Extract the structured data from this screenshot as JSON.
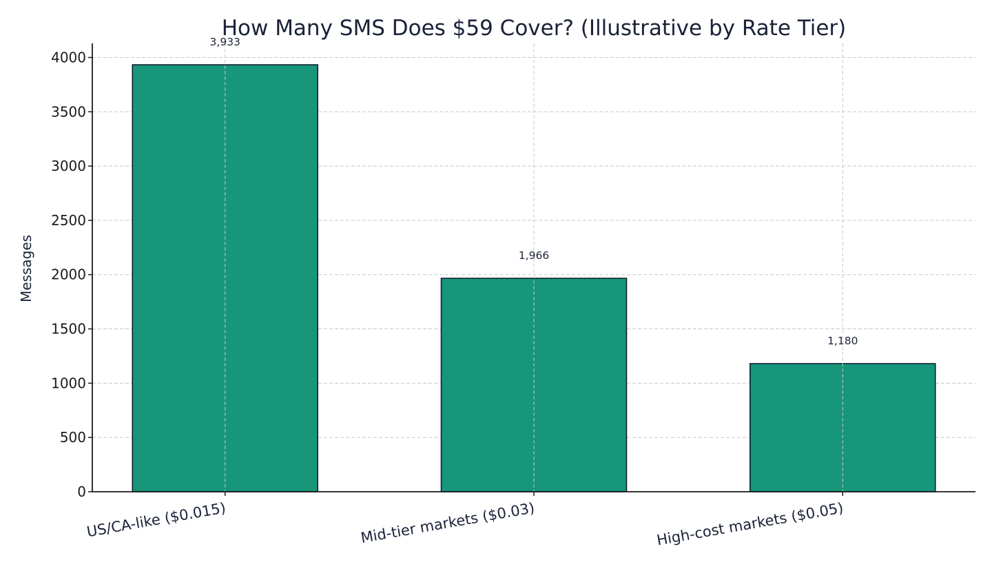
{
  "chart_data": {
    "type": "bar",
    "title": "How Many SMS Does $59 Cover? (Illustrative by Rate Tier)",
    "xlabel": "",
    "ylabel": "Messages",
    "categories": [
      "US/CA-like ($0.015)",
      "Mid-tier markets ($0.03)",
      "High-cost markets ($0.05)"
    ],
    "values": [
      3933,
      1966,
      1180
    ],
    "data_labels": [
      "3,933",
      "1,966",
      "1,180"
    ],
    "ylim": [
      0,
      4130
    ],
    "yticks": [
      0,
      500,
      1000,
      1500,
      2000,
      2500,
      3000,
      3500,
      4000
    ],
    "grid": true,
    "legend": "none",
    "colors": {
      "bar": "#17967a",
      "bar_edge": "#0f1e2e",
      "text": "#1a2238"
    }
  }
}
